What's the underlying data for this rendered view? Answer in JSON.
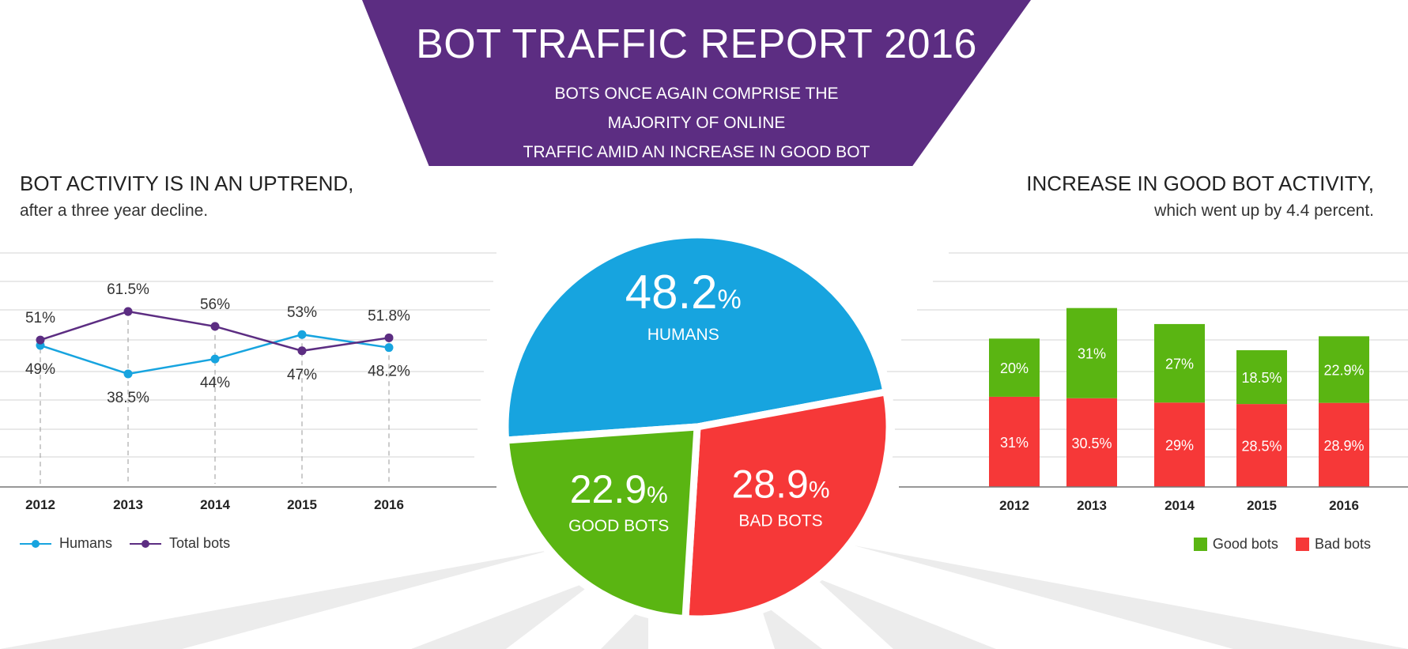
{
  "banner": {
    "title": "BOT TRAFFIC REPORT 2016",
    "subtitle_line1": "BOTS ONCE AGAIN COMPRISE THE MAJORITY OF ONLINE",
    "subtitle_line2": "TRAFFIC AMID AN INCREASE IN GOOD BOT ACTIVITY."
  },
  "left_panel": {
    "heading": "BOT ACTIVITY IS IN AN UPTREND,",
    "subheading": "after a three year decline."
  },
  "right_panel": {
    "heading": "INCREASE IN GOOD BOT ACTIVITY,",
    "subheading": "which went up by 4.4 percent."
  },
  "colors": {
    "purple": "#5c2d82",
    "blue": "#17a4df",
    "green": "#5ab512",
    "red": "#f63838",
    "grid": "#e2e2e2",
    "ray": "#ececec"
  },
  "chart_data": [
    {
      "type": "line",
      "name": "Bot activity trend",
      "categories": [
        "2012",
        "2013",
        "2014",
        "2015",
        "2016"
      ],
      "series": [
        {
          "name": "Humans",
          "values": [
            49,
            38.5,
            44,
            53,
            48.2
          ],
          "labels": [
            "49%",
            "38.5%",
            "44%",
            "53%",
            "48.2%"
          ],
          "color": "#17a4df"
        },
        {
          "name": "Total bots",
          "values": [
            51,
            61.5,
            56,
            47,
            51.8
          ],
          "labels": [
            "51%",
            "61.5%",
            "56%",
            "47%",
            "51.8%"
          ],
          "color": "#5c2d82"
        }
      ],
      "ylim": [
        0,
        100
      ],
      "grid": true,
      "legend": "bottom-left"
    },
    {
      "type": "pie",
      "name": "2016 traffic split",
      "slices": [
        {
          "name": "HUMANS",
          "value": 48.2,
          "number": "48.2",
          "unit": "%",
          "color": "#17a4df"
        },
        {
          "name": "BAD BOTS",
          "value": 28.9,
          "number": "28.9",
          "unit": "%",
          "color": "#f63838"
        },
        {
          "name": "GOOD BOTS",
          "value": 22.9,
          "number": "22.9",
          "unit": "%",
          "color": "#5ab512"
        }
      ]
    },
    {
      "type": "bar",
      "stacked": true,
      "name": "Good vs bad bots",
      "categories": [
        "2012",
        "2013",
        "2014",
        "2015",
        "2016"
      ],
      "series": [
        {
          "name": "Bad bots",
          "values": [
            31,
            30.5,
            29,
            28.5,
            28.9
          ],
          "labels": [
            "31%",
            "30.5%",
            "29%",
            "28.5%",
            "28.9%"
          ],
          "color": "#f63838"
        },
        {
          "name": "Good bots",
          "values": [
            20,
            31,
            27,
            18.5,
            22.9
          ],
          "labels": [
            "20%",
            "31%",
            "27%",
            "18.5%",
            "22.9%"
          ],
          "color": "#5ab512"
        }
      ],
      "grid": true,
      "legend": "bottom-right"
    }
  ]
}
